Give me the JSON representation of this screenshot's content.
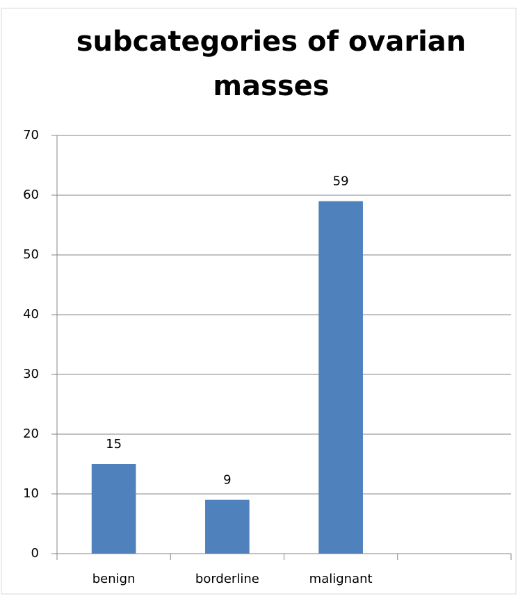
{
  "chart_data": {
    "type": "bar",
    "title": "subcategories of ovarian masses",
    "categories": [
      "benign",
      "borderline",
      "malignant",
      null
    ],
    "values": [
      15,
      9,
      59,
      null
    ],
    "color": "#4f81bd",
    "ylim": [
      0,
      70
    ],
    "yticks": [
      0,
      10,
      20,
      30,
      40,
      50,
      60,
      70
    ],
    "grid": true
  }
}
